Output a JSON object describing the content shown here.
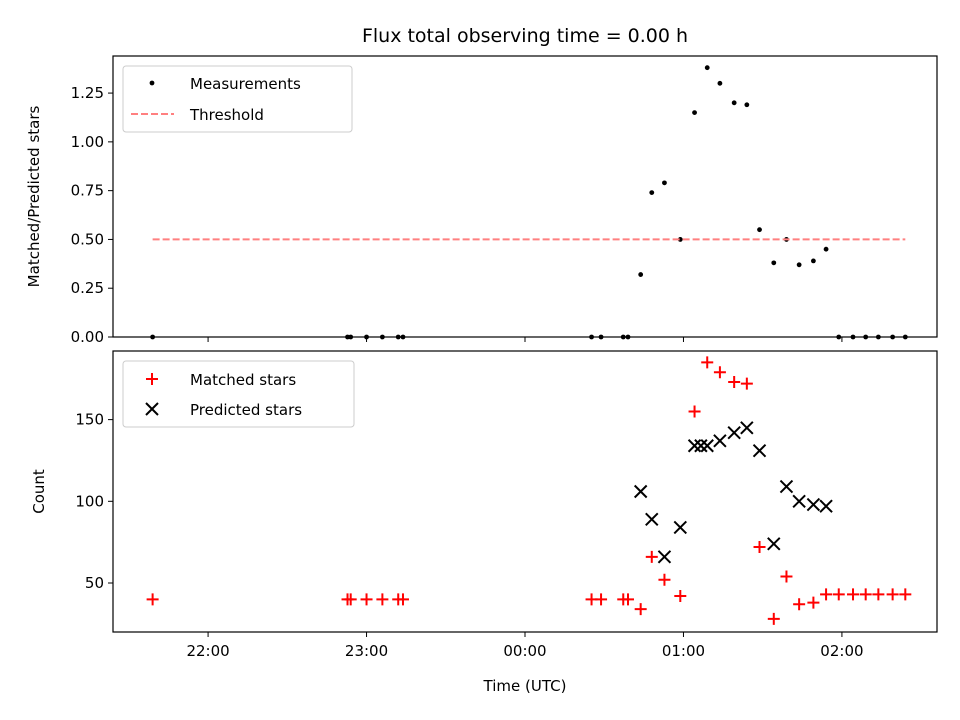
{
  "chart_data": [
    {
      "type": "scatter",
      "title": "Flux total observing time = 0.00 h",
      "xlabel": "",
      "ylabel": "Matched/Predicted stars",
      "xlim": [
        -2.6,
        2.6
      ],
      "ylim": [
        0.0,
        1.44
      ],
      "xticks": [
        -2,
        -1,
        0,
        1,
        2
      ],
      "yticks": [
        0.0,
        0.25,
        0.5,
        0.75,
        1.0,
        1.25
      ],
      "ytick_labels": [
        "0.00",
        "0.25",
        "0.50",
        "0.75",
        "1.00",
        "1.25"
      ],
      "legend_position": "top-left",
      "series": [
        {
          "name": "Measurements",
          "marker": "dot",
          "color": "#000000",
          "x": [
            -2.35,
            -1.12,
            -1.1,
            -1.0,
            -0.9,
            -0.8,
            -0.77,
            0.42,
            0.48,
            0.62,
            0.65,
            0.73,
            0.8,
            0.88,
            0.98,
            1.07,
            1.15,
            1.23,
            1.32,
            1.4,
            1.48,
            1.57,
            1.65,
            1.73,
            1.82,
            1.9,
            1.98,
            2.07,
            2.15,
            2.23,
            2.32,
            2.4
          ],
          "y": [
            0,
            0,
            0,
            0,
            0,
            0,
            0,
            0,
            0,
            0,
            0,
            0.32,
            0.74,
            0.79,
            0.5,
            1.15,
            1.38,
            1.3,
            1.2,
            1.19,
            0.55,
            0.38,
            0.5,
            0.37,
            0.39,
            0.45,
            0,
            0,
            0,
            0,
            0,
            0
          ]
        },
        {
          "name": "Threshold",
          "style": "dashed-line",
          "color": "#ff8080",
          "x": [
            -2.35,
            2.4
          ],
          "y": [
            0.5,
            0.5
          ]
        }
      ]
    },
    {
      "type": "scatter",
      "title": "",
      "xlabel": "Time (UTC)",
      "ylabel": "Count",
      "xlim": [
        -2.6,
        2.6
      ],
      "ylim": [
        20,
        192
      ],
      "xticks": [
        -2,
        -1,
        0,
        1,
        2
      ],
      "xtick_labels": [
        "22:00",
        "23:00",
        "00:00",
        "01:00",
        "02:00"
      ],
      "yticks": [
        50,
        100,
        150
      ],
      "ytick_labels": [
        "50",
        "100",
        "150"
      ],
      "legend_position": "top-left",
      "series": [
        {
          "name": "Matched stars",
          "marker": "plus",
          "color": "#ff0000",
          "x": [
            -2.35,
            -1.12,
            -1.1,
            -1.0,
            -0.9,
            -0.8,
            -0.77,
            0.42,
            0.48,
            0.62,
            0.65,
            0.73,
            0.8,
            0.88,
            0.98,
            1.07,
            1.15,
            1.23,
            1.32,
            1.4,
            1.48,
            1.57,
            1.65,
            1.73,
            1.82,
            1.9,
            1.98,
            2.07,
            2.15,
            2.23,
            2.32,
            2.4
          ],
          "y": [
            40,
            40,
            40,
            40,
            40,
            40,
            40,
            40,
            40,
            40,
            40,
            34,
            66,
            52,
            42,
            155,
            185,
            179,
            173,
            172,
            72,
            28,
            54,
            37,
            38,
            43,
            43,
            43,
            43,
            43,
            43,
            43
          ]
        },
        {
          "name": "Predicted stars",
          "marker": "x",
          "color": "#000000",
          "x": [
            0.73,
            0.8,
            0.88,
            0.98,
            1.07,
            1.11,
            1.15,
            1.23,
            1.32,
            1.4,
            1.48,
            1.57,
            1.65,
            1.73,
            1.82,
            1.9
          ],
          "y": [
            106,
            89,
            66,
            84,
            134,
            134,
            134,
            137,
            142,
            145,
            131,
            74,
            109,
            100,
            98,
            97
          ]
        }
      ]
    }
  ]
}
